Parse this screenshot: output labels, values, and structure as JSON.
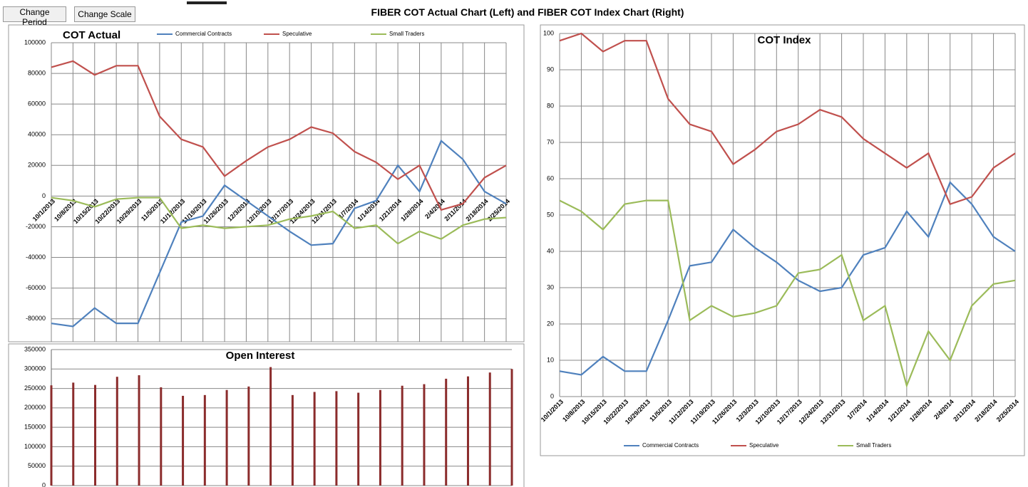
{
  "header": {
    "buttons": [
      "Change Period",
      "Change Scale"
    ],
    "title": "FIBER COT Actual Chart (Left) and FIBER COT Index Chart (Right)"
  },
  "chart_data": [
    {
      "type": "line",
      "title": "COT Actual",
      "legend": "top",
      "grid": true,
      "categories": [
        "10/1/2013",
        "10/8/2013",
        "10/15/2013",
        "10/22/2013",
        "10/29/2013",
        "11/5/2013",
        "11/12/2013",
        "11/19/2013",
        "11/26/2013",
        "12/3/2013",
        "12/10/2013",
        "12/17/2013",
        "12/24/2013",
        "12/31/2013",
        "1/7/2014",
        "1/14/2014",
        "1/21/2014",
        "1/28/2014",
        "2/4/2014",
        "2/11/2014",
        "2/18/2014",
        "2/25/2014"
      ],
      "series": [
        {
          "name": "Commercial Contracts",
          "color": "#4f81bd",
          "values": [
            -83000,
            -85000,
            -73000,
            -83000,
            -83000,
            -50000,
            -17000,
            -13000,
            7000,
            -3000,
            -13000,
            -23000,
            -32000,
            -31000,
            -8000,
            -3000,
            20000,
            3000,
            36000,
            24000,
            3000,
            -5000
          ]
        },
        {
          "name": "Speculative",
          "color": "#c0504d",
          "values": [
            84000,
            88000,
            79000,
            85000,
            85000,
            52000,
            37000,
            32000,
            13000,
            23000,
            32000,
            37000,
            45000,
            41000,
            29000,
            22000,
            11000,
            20000,
            -9000,
            -5000,
            12000,
            20000
          ]
        },
        {
          "name": "Small Traders",
          "color": "#9bbb59",
          "values": [
            -1000,
            -3000,
            -7000,
            -2000,
            -1000,
            -1000,
            -21000,
            -19000,
            -21000,
            -20000,
            -19000,
            -15000,
            -13000,
            -10000,
            -21000,
            -19000,
            -31000,
            -23000,
            -28000,
            -19000,
            -15000,
            -14000
          ]
        }
      ],
      "ylim": [
        -95000,
        100000
      ],
      "yticks": [
        -80000,
        -60000,
        -40000,
        -20000,
        0,
        20000,
        40000,
        60000,
        80000,
        100000
      ]
    },
    {
      "type": "bar",
      "title": "Open Interest",
      "grid": true,
      "color": "#8b2c2c",
      "values": [
        258000,
        265000,
        259000,
        280000,
        284000,
        253000,
        231000,
        233000,
        246000,
        255000,
        305000,
        233000,
        241000,
        243000,
        239000,
        246000,
        257000,
        261000,
        275000,
        281000,
        291000,
        300000
      ],
      "ylim": [
        0,
        350000
      ],
      "yticks": [
        0,
        50000,
        100000,
        150000,
        200000,
        250000,
        300000,
        350000
      ]
    },
    {
      "type": "line",
      "title": "COT Index",
      "legend": "bottom",
      "grid": true,
      "categories": [
        "10/1/2013",
        "10/8/2013",
        "10/15/2013",
        "10/22/2013",
        "10/29/2013",
        "11/5/2013",
        "11/12/2013",
        "11/19/2013",
        "11/26/2013",
        "12/3/2013",
        "12/10/2013",
        "12/17/2013",
        "12/24/2013",
        "12/31/2013",
        "1/7/2014",
        "1/14/2014",
        "1/21/2014",
        "1/28/2014",
        "2/4/2014",
        "2/11/2014",
        "2/18/2014",
        "2/25/2014"
      ],
      "series": [
        {
          "name": "Commercial Contracts",
          "color": "#4f81bd",
          "values": [
            7,
            6,
            11,
            7,
            7,
            21,
            36,
            37,
            46,
            41,
            37,
            32,
            29,
            30,
            39,
            41,
            51,
            44,
            59,
            53,
            44,
            40
          ]
        },
        {
          "name": "Speculative",
          "color": "#c0504d",
          "values": [
            98,
            100,
            95,
            98,
            98,
            82,
            75,
            73,
            64,
            68,
            73,
            75,
            79,
            77,
            71,
            67,
            63,
            67,
            53,
            55,
            63,
            67
          ]
        },
        {
          "name": "Small Traders",
          "color": "#9bbb59",
          "values": [
            54,
            51,
            46,
            53,
            54,
            54,
            21,
            25,
            22,
            23,
            25,
            34,
            35,
            39,
            21,
            25,
            3,
            18,
            10,
            25,
            31,
            32
          ]
        }
      ],
      "ylim": [
        0,
        100
      ],
      "yticks": [
        0,
        10,
        20,
        30,
        40,
        50,
        60,
        70,
        80,
        90,
        100
      ]
    }
  ]
}
